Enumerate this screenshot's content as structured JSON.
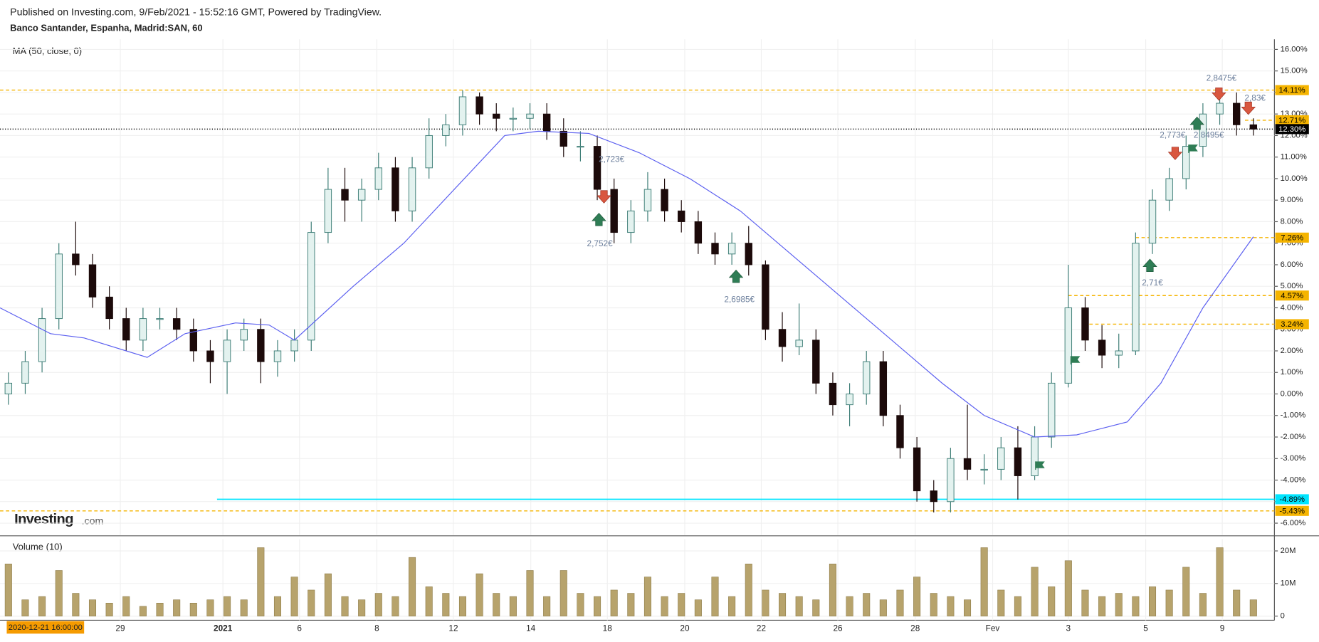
{
  "chart_data": {
    "type": "candlestick",
    "subtitle": "Published on Investing.com, 9/Feb/2021 - 15:52:16 GMT, Powered by TradingView.",
    "title": "Banco Santander, Espanha, Madrid:SAN, 60",
    "start_label": "2020-12-21 16:00:00",
    "logo": "Investing",
    "logo_suffix": ".com",
    "up_color": "#e3f2ef",
    "up_border": "#3d7d76",
    "down_color": "#1c0a0a",
    "grid": true,
    "x": [
      0,
      1,
      2,
      3,
      4,
      5,
      6,
      7,
      8,
      9,
      10,
      11,
      12,
      13,
      14,
      15,
      16,
      17,
      18,
      19,
      20,
      21,
      22,
      23,
      24,
      25,
      26,
      27,
      28,
      29,
      30,
      31,
      32,
      33,
      34,
      35,
      36,
      37,
      38,
      39,
      40,
      41,
      42,
      43,
      44,
      45,
      46,
      47,
      48,
      49,
      50,
      51,
      52,
      53,
      54,
      55,
      56,
      57,
      58,
      59,
      60,
      61,
      62,
      63,
      64,
      65,
      66,
      67,
      68,
      69,
      70,
      71,
      72,
      73,
      74
    ],
    "open": [
      0.0,
      0.5,
      1.5,
      3.5,
      6.5,
      6.0,
      4.5,
      3.5,
      2.5,
      3.5,
      3.5,
      3.0,
      2.0,
      1.5,
      2.5,
      3.0,
      1.5,
      2.0,
      2.5,
      7.5,
      9.5,
      9.0,
      9.5,
      10.5,
      8.5,
      10.5,
      12.0,
      12.5,
      13.8,
      13.0,
      12.8,
      12.8,
      13.0,
      12.2,
      11.5,
      11.5,
      9.5,
      7.5,
      8.5,
      9.5,
      8.5,
      8.0,
      7.0,
      6.5,
      7.0,
      6.0,
      3.0,
      2.2,
      2.5,
      0.5,
      -0.5,
      0.0,
      1.5,
      -1.0,
      -2.5,
      -4.5,
      -5.0,
      -3.0,
      -3.5,
      -3.5,
      -2.5,
      -3.8,
      -2.0,
      0.5,
      4.0,
      2.5,
      1.8,
      2.0,
      7.0,
      9.0,
      10.0,
      11.5,
      13.0,
      13.5,
      12.5
    ],
    "high": [
      1.0,
      2.0,
      4.0,
      7.0,
      8.0,
      6.5,
      5.0,
      4.0,
      4.0,
      4.0,
      4.0,
      3.5,
      2.5,
      3.0,
      3.5,
      3.5,
      2.5,
      3.0,
      8.0,
      10.5,
      10.5,
      10.0,
      11.2,
      11.0,
      11.0,
      12.8,
      13.0,
      14.1,
      14.0,
      13.5,
      13.3,
      13.5,
      13.5,
      12.8,
      12.2,
      12.0,
      10.0,
      9.0,
      10.3,
      10.0,
      9.0,
      8.5,
      7.5,
      7.5,
      7.8,
      6.2,
      3.8,
      4.2,
      3.0,
      1.0,
      0.5,
      2.0,
      2.0,
      -0.5,
      -2.0,
      -4.0,
      -2.5,
      -0.5,
      -2.8,
      -2.0,
      -1.5,
      -1.5,
      1.0,
      6.0,
      4.5,
      3.2,
      2.8,
      7.5,
      9.5,
      10.5,
      12.0,
      13.5,
      14.0,
      14.0,
      12.8
    ],
    "low": [
      -0.5,
      0.0,
      1.0,
      3.0,
      5.5,
      4.0,
      3.0,
      2.0,
      2.0,
      3.0,
      2.5,
      1.5,
      0.5,
      0.0,
      2.0,
      0.5,
      0.8,
      1.5,
      2.0,
      7.0,
      8.0,
      8.0,
      9.0,
      8.0,
      8.0,
      10.0,
      11.5,
      12.0,
      12.5,
      12.2,
      12.2,
      12.3,
      11.8,
      11.0,
      10.8,
      9.0,
      7.0,
      7.0,
      8.0,
      8.0,
      7.5,
      6.5,
      6.0,
      6.0,
      5.5,
      2.5,
      1.5,
      1.8,
      0.0,
      -1.0,
      -1.5,
      -0.5,
      -1.5,
      -3.0,
      -5.0,
      -5.5,
      -5.5,
      -4.0,
      -4.2,
      -4.0,
      -4.9,
      -4.0,
      -2.5,
      0.3,
      2.0,
      1.2,
      1.2,
      1.8,
      6.5,
      8.5,
      9.5,
      11.0,
      12.5,
      12.0,
      12.0
    ],
    "close": [
      0.5,
      1.5,
      3.5,
      6.5,
      6.0,
      4.5,
      3.5,
      2.5,
      3.5,
      3.5,
      3.0,
      2.0,
      1.5,
      2.5,
      3.0,
      1.5,
      2.0,
      2.5,
      7.5,
      9.5,
      9.0,
      9.5,
      10.5,
      8.5,
      10.5,
      12.0,
      12.5,
      13.8,
      13.0,
      12.8,
      12.8,
      13.0,
      12.2,
      11.5,
      11.5,
      9.5,
      7.5,
      8.5,
      9.5,
      8.5,
      8.0,
      7.0,
      6.5,
      7.0,
      6.0,
      3.0,
      2.2,
      2.5,
      0.5,
      -0.5,
      0.0,
      1.5,
      -1.0,
      -2.5,
      -4.5,
      -5.0,
      -3.0,
      -3.5,
      -3.5,
      -2.5,
      -3.8,
      -2.0,
      0.5,
      4.0,
      2.5,
      1.8,
      2.0,
      7.0,
      9.0,
      10.0,
      11.5,
      13.0,
      13.5,
      12.5,
      12.3
    ],
    "indicator": {
      "name": "MA (50, close, 0)",
      "color": "#5b5ff0",
      "x": [
        -0.5,
        2.5,
        4.5,
        8.25,
        10.5,
        13.5,
        15.5,
        17,
        20.5,
        23.5,
        26.5,
        29.5,
        31.5,
        34.5,
        37.5,
        40.5,
        43.5,
        46.5,
        49.5,
        52.5,
        55.5,
        58,
        61,
        63.5,
        66.5,
        68.5,
        71,
        74
      ],
      "values": [
        4.0,
        2.8,
        2.6,
        1.7,
        2.8,
        3.3,
        3.2,
        2.5,
        5,
        7,
        9.5,
        12,
        12.2,
        12.1,
        11.2,
        10,
        8.5,
        6.5,
        4.5,
        2.5,
        0.5,
        -1.0,
        -2.0,
        -1.9,
        -1.3,
        0.5,
        4,
        7.3
      ]
    },
    "levels": [
      {
        "value": 14.11,
        "label": "14.11%",
        "color": "#f5b400",
        "style": "dashed",
        "from": -0.5
      },
      {
        "value": 12.71,
        "label": "12.71%",
        "color": "#f5b400",
        "style": "dashed",
        "from": 73.5
      },
      {
        "value": 12.3,
        "label": "12.30%",
        "color": "#000000",
        "style": "dotted",
        "from": -0.5
      },
      {
        "value": 7.26,
        "label": "7.26%",
        "color": "#f5b400",
        "style": "dashed",
        "from": 67
      },
      {
        "value": 4.57,
        "label": "4.57%",
        "color": "#f5b400",
        "style": "dashed",
        "from": 63
      },
      {
        "value": 3.24,
        "label": "3.24%",
        "color": "#f5b400",
        "style": "dashed",
        "from": 64.25
      },
      {
        "value": -4.89,
        "label": "-4.89%",
        "color": "#00e5ff",
        "style": "solid",
        "from": 12.4
      },
      {
        "value": -5.43,
        "label": "-5.43%",
        "color": "#f5b400",
        "style": "dashed",
        "from": -0.5
      }
    ],
    "annotations": [
      "2,723€",
      "2,752€",
      "2,6985€",
      "2,71€",
      "2,773€",
      "2,8495€",
      "2,8475€",
      "2,83€"
    ],
    "xlim": [
      -0.5,
      75.25
    ],
    "xticks": [
      {
        "value": 6.65,
        "label": "29"
      },
      {
        "value": 12.75,
        "label": "2021"
      },
      {
        "value": 17.3,
        "label": "6"
      },
      {
        "value": 21.9,
        "label": "8"
      },
      {
        "value": 26.45,
        "label": "12"
      },
      {
        "value": 31.05,
        "label": "14"
      },
      {
        "value": 35.6,
        "label": "18"
      },
      {
        "value": 40.2,
        "label": "20"
      },
      {
        "value": 44.75,
        "label": "22"
      },
      {
        "value": 49.3,
        "label": "26"
      },
      {
        "value": 53.9,
        "label": "28"
      },
      {
        "value": 58.5,
        "label": "Fev"
      },
      {
        "value": 63,
        "label": "3"
      },
      {
        "value": 67.6,
        "label": "5"
      },
      {
        "value": 72.15,
        "label": "9"
      }
    ],
    "ylim": [
      -6.55,
      16.47
    ],
    "yticks": [
      {
        "value": 16,
        "label": "16.00%"
      },
      {
        "value": 15,
        "label": "15.00%"
      },
      {
        "value": 14,
        "label": "14.00%"
      },
      {
        "value": 13,
        "label": "13.00%"
      },
      {
        "value": 12,
        "label": "12.00%"
      },
      {
        "value": 11,
        "label": "11.00%"
      },
      {
        "value": 10,
        "label": "10.00%"
      },
      {
        "value": 9,
        "label": "9.00%"
      },
      {
        "value": 8,
        "label": "8.00%"
      },
      {
        "value": 7,
        "label": "7.00%"
      },
      {
        "value": 6,
        "label": "6.00%"
      },
      {
        "value": 5,
        "label": "5.00%"
      },
      {
        "value": 4,
        "label": "4.00%"
      },
      {
        "value": 3,
        "label": "3.00%"
      },
      {
        "value": 2,
        "label": "2.00%"
      },
      {
        "value": 1,
        "label": "1.00%"
      },
      {
        "value": 0,
        "label": "0.00%"
      },
      {
        "value": -1,
        "label": "-1.00%"
      },
      {
        "value": -2,
        "label": "-2.00%"
      },
      {
        "value": -3,
        "label": "-3.00%"
      },
      {
        "value": -4,
        "label": "-4.00%"
      },
      {
        "value": -5,
        "label": "-5.00%"
      },
      {
        "value": -6,
        "label": "-6.00%"
      }
    ],
    "volume": {
      "name": "Volume (10)",
      "color": "#b7a36c",
      "values": [
        16,
        5,
        6,
        14,
        7,
        5,
        4,
        6,
        3,
        4,
        5,
        4,
        5,
        6,
        5,
        21,
        6,
        12,
        8,
        13,
        6,
        5,
        7,
        6,
        18,
        9,
        7,
        6,
        13,
        7,
        6,
        14,
        6,
        14,
        7,
        6,
        8,
        7,
        12,
        6,
        7,
        5,
        12,
        6,
        16,
        8,
        7,
        6,
        5,
        16,
        6,
        7,
        5,
        8,
        12,
        7,
        6,
        5,
        21,
        8,
        6,
        15,
        9,
        17,
        8,
        6,
        7,
        6,
        9,
        8,
        15,
        7,
        21,
        8,
        5
      ],
      "y2lim": [
        -1.28,
        23.6
      ],
      "y2ticks": [
        {
          "value": 20,
          "label": "20M"
        },
        {
          "value": 10,
          "label": "10M"
        },
        {
          "value": 0,
          "label": "0"
        }
      ]
    }
  }
}
